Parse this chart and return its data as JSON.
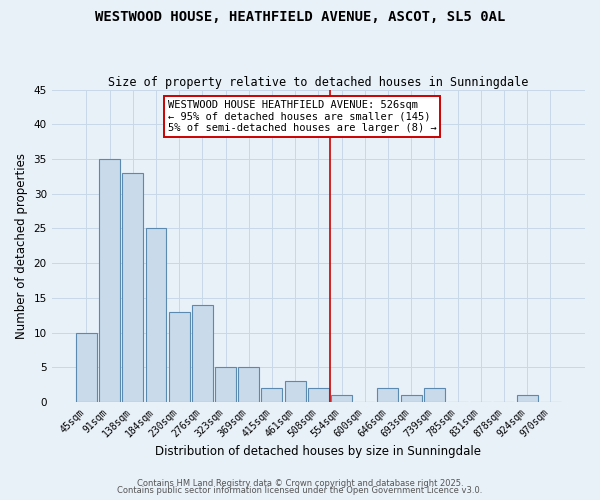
{
  "title": "WESTWOOD HOUSE, HEATHFIELD AVENUE, ASCOT, SL5 0AL",
  "subtitle": "Size of property relative to detached houses in Sunningdale",
  "xlabel": "Distribution of detached houses by size in Sunningdale",
  "ylabel": "Number of detached properties",
  "categories": [
    "45sqm",
    "91sqm",
    "138sqm",
    "184sqm",
    "230sqm",
    "276sqm",
    "323sqm",
    "369sqm",
    "415sqm",
    "461sqm",
    "508sqm",
    "554sqm",
    "600sqm",
    "646sqm",
    "693sqm",
    "739sqm",
    "785sqm",
    "831sqm",
    "878sqm",
    "924sqm",
    "970sqm"
  ],
  "values": [
    10,
    35,
    33,
    25,
    13,
    14,
    5,
    5,
    2,
    3,
    2,
    1,
    0,
    2,
    1,
    2,
    0,
    0,
    0,
    1,
    0
  ],
  "bar_color": "#c9daea",
  "bar_edge_color": "#5a8ab0",
  "bar_linewidth": 0.8,
  "vline_color": "#cc0000",
  "ylim": [
    0,
    45
  ],
  "yticks": [
    0,
    5,
    10,
    15,
    20,
    25,
    30,
    35,
    40,
    45
  ],
  "annotation_text": "WESTWOOD HOUSE HEATHFIELD AVENUE: 526sqm\n← 95% of detached houses are smaller (145)\n5% of semi-detached houses are larger (8) →",
  "annotation_box_edge": "#cc0000",
  "background_color": "#e8f0f8",
  "grid_color": "#c8d8e8",
  "footer_line1": "Contains HM Land Registry data © Crown copyright and database right 2025.",
  "footer_line2": "Contains public sector information licensed under the Open Government Licence v3.0.",
  "title_fontsize": 10,
  "subtitle_fontsize": 8.5,
  "tick_fontsize": 7,
  "ylabel_fontsize": 8.5,
  "xlabel_fontsize": 8.5,
  "annotation_fontsize": 7.5,
  "footer_fontsize": 6
}
